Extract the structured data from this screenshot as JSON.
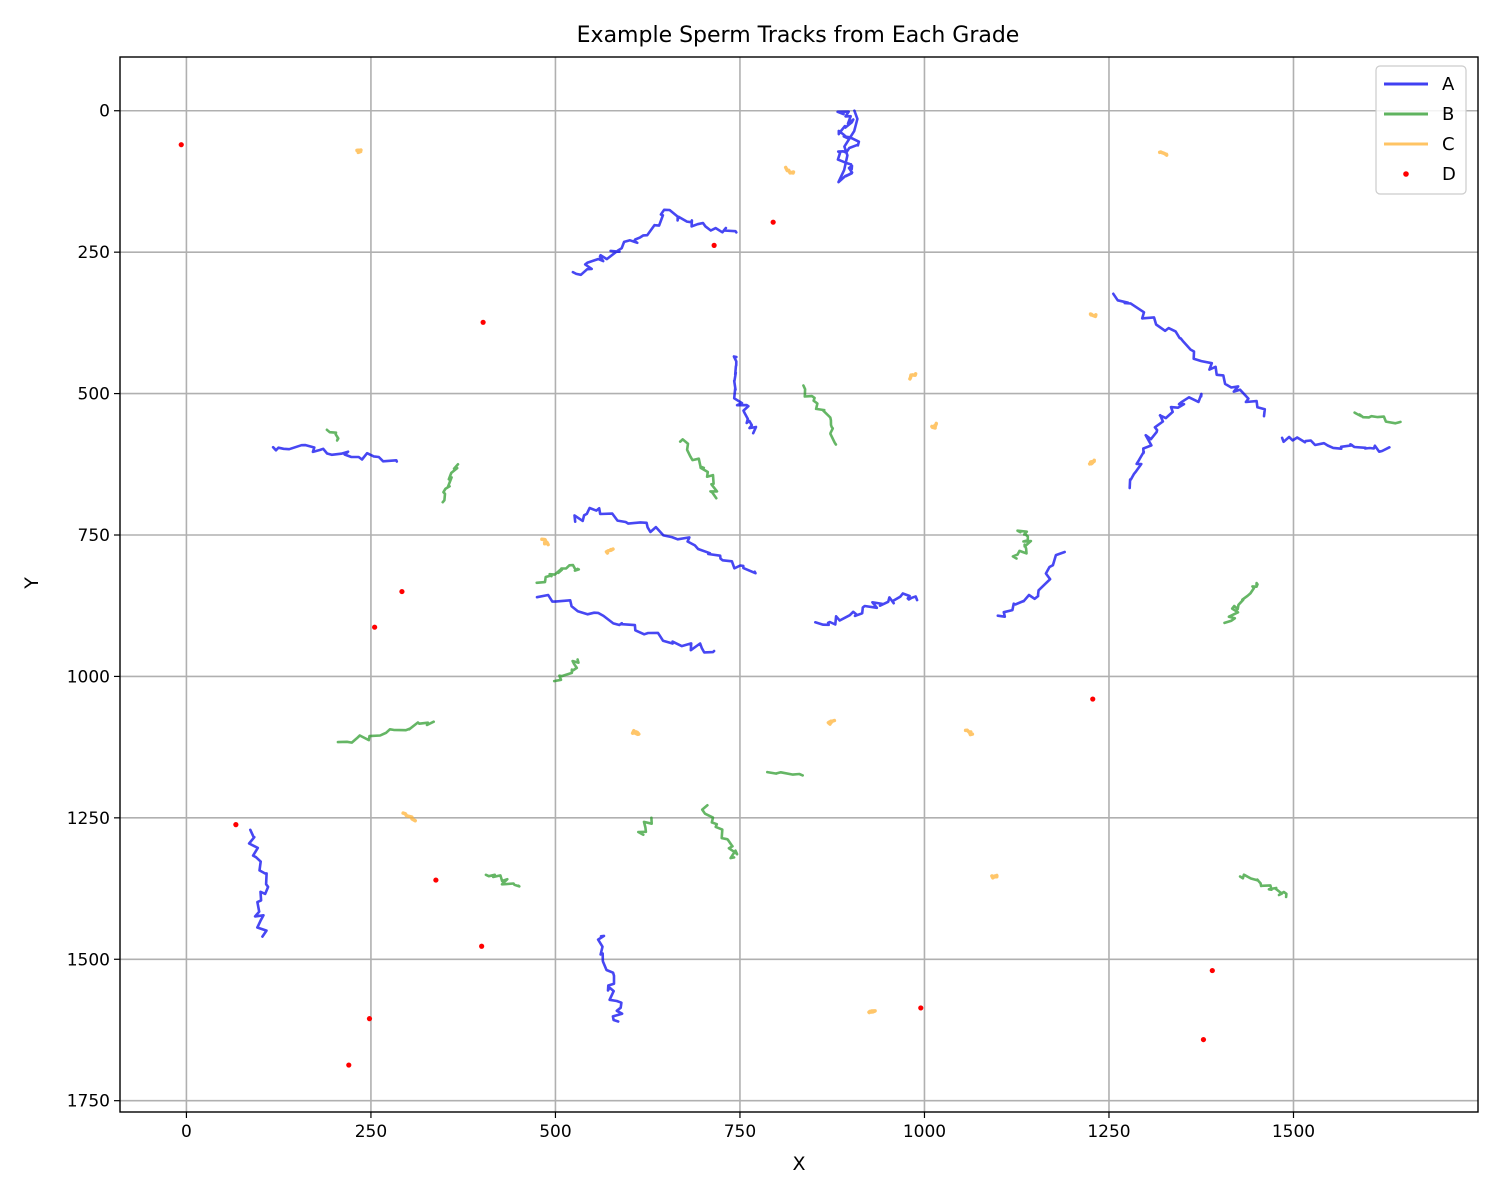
{
  "chart_data": {
    "type": "line",
    "title": "Example Sperm Tracks from Each Grade",
    "xlabel": "X",
    "ylabel": "Y",
    "xlim": [
      -90,
      1750
    ],
    "ylim": [
      1770,
      -95
    ],
    "y_inverted": true,
    "x_ticks": [
      0,
      250,
      500,
      750,
      1000,
      1250,
      1500
    ],
    "y_ticks": [
      0,
      250,
      500,
      750,
      1000,
      1250,
      1500,
      1750
    ],
    "grid": true,
    "legend_position": "top-right",
    "series": [
      {
        "name": "A",
        "color": "#0000ee",
        "tracks": [
          [
            [
              885,
              0
            ],
            [
              905,
              20
            ],
            [
              885,
              40
            ],
            [
              908,
              60
            ],
            [
              883,
              80
            ],
            [
              905,
              100
            ],
            [
              890,
              120
            ],
            [
              905,
              0
            ]
          ],
          [
            [
              530,
              290
            ],
            [
              550,
              270
            ],
            [
              575,
              255
            ],
            [
              600,
              235
            ],
            [
              625,
              215
            ],
            [
              650,
              180
            ],
            [
              680,
              195
            ],
            [
              710,
              205
            ],
            [
              745,
              215
            ]
          ],
          [
            [
              1260,
              325
            ],
            [
              1295,
              355
            ],
            [
              1330,
              390
            ],
            [
              1365,
              425
            ],
            [
              1400,
              465
            ],
            [
              1430,
              500
            ],
            [
              1460,
              540
            ]
          ],
          [
            [
              1280,
              665
            ],
            [
              1290,
              620
            ],
            [
              1305,
              580
            ],
            [
              1320,
              545
            ],
            [
              1345,
              520
            ],
            [
              1375,
              505
            ]
          ],
          [
            [
              745,
              430
            ],
            [
              738,
              470
            ],
            [
              750,
              510
            ],
            [
              762,
              545
            ],
            [
              768,
              570
            ]
          ],
          [
            [
              115,
              600
            ],
            [
              160,
              595
            ],
            [
              200,
              602
            ],
            [
              240,
              610
            ],
            [
              285,
              620
            ]
          ],
          [
            [
              1480,
              580
            ],
            [
              1520,
              585
            ],
            [
              1560,
              592
            ],
            [
              1600,
              598
            ],
            [
              1630,
              595
            ]
          ],
          [
            [
              520,
              725
            ],
            [
              550,
              705
            ],
            [
              600,
              725
            ],
            [
              650,
              745
            ],
            [
              700,
              775
            ],
            [
              740,
              800
            ],
            [
              770,
              815
            ]
          ],
          [
            [
              480,
              855
            ],
            [
              530,
              880
            ],
            [
              580,
              905
            ],
            [
              630,
              925
            ],
            [
              680,
              945
            ],
            [
              715,
              955
            ]
          ],
          [
            [
              855,
              910
            ],
            [
              885,
              900
            ],
            [
              915,
              885
            ],
            [
              945,
              870
            ],
            [
              970,
              860
            ],
            [
              990,
              865
            ]
          ],
          [
            [
              1100,
              895
            ],
            [
              1130,
              870
            ],
            [
              1160,
              845
            ],
            [
              1190,
              780
            ]
          ],
          [
            [
              85,
              1270
            ],
            [
              95,
              1320
            ],
            [
              108,
              1370
            ],
            [
              100,
              1420
            ],
            [
              103,
              1460
            ]
          ],
          [
            [
              558,
              1455
            ],
            [
              570,
              1500
            ],
            [
              575,
              1545
            ],
            [
              583,
              1580
            ],
            [
              585,
              1610
            ]
          ]
        ]
      },
      {
        "name": "B",
        "color": "#2a9a2a",
        "tracks": [
          [
            [
              195,
              565
            ],
            [
              205,
              580
            ]
          ],
          [
            [
              350,
              690
            ],
            [
              358,
              660
            ],
            [
              368,
              625
            ]
          ],
          [
            [
              670,
              580
            ],
            [
              690,
              620
            ],
            [
              710,
              650
            ],
            [
              718,
              685
            ]
          ],
          [
            [
              835,
              490
            ],
            [
              855,
              520
            ],
            [
              875,
              550
            ],
            [
              880,
              590
            ]
          ],
          [
            [
              1580,
              535
            ],
            [
              1610,
              540
            ],
            [
              1645,
              550
            ]
          ],
          [
            [
              1120,
              790
            ],
            [
              1135,
              780
            ],
            [
              1140,
              755
            ],
            [
              1130,
              745
            ]
          ],
          [
            [
              480,
              830
            ],
            [
              500,
              815
            ],
            [
              520,
              805
            ],
            [
              530,
              810
            ]
          ],
          [
            [
              1410,
              910
            ],
            [
              1425,
              880
            ],
            [
              1440,
              850
            ],
            [
              1450,
              835
            ]
          ],
          [
            [
              500,
              1010
            ],
            [
              520,
              990
            ],
            [
              530,
              970
            ]
          ],
          [
            [
              205,
              1115
            ],
            [
              250,
              1105
            ],
            [
              300,
              1090
            ],
            [
              335,
              1080
            ]
          ],
          [
            [
              785,
              1165
            ],
            [
              835,
              1175
            ]
          ],
          [
            [
              615,
              1285
            ],
            [
              630,
              1250
            ]
          ],
          [
            [
              700,
              1230
            ],
            [
              720,
              1270
            ],
            [
              740,
              1300
            ],
            [
              742,
              1320
            ]
          ],
          [
            [
              410,
              1350
            ],
            [
              430,
              1360
            ],
            [
              450,
              1370
            ]
          ],
          [
            [
              1430,
              1350
            ],
            [
              1455,
              1365
            ],
            [
              1475,
              1375
            ],
            [
              1490,
              1390
            ]
          ]
        ]
      },
      {
        "name": "C",
        "color": "#ffb030",
        "tracks": [
          [
            [
              232,
              68
            ],
            [
              236,
              72
            ]
          ],
          [
            [
              812,
              102
            ],
            [
              822,
              110
            ]
          ],
          [
            [
              1318,
              74
            ],
            [
              1328,
              77
            ]
          ],
          [
            [
              1224,
              360
            ],
            [
              1232,
              362
            ]
          ],
          [
            [
              978,
              472
            ],
            [
              988,
              465
            ]
          ],
          [
            [
              1012,
              560
            ],
            [
              1016,
              553
            ]
          ],
          [
            [
              1225,
              625
            ],
            [
              1230,
              618
            ]
          ],
          [
            [
              482,
              757
            ],
            [
              490,
              767
            ]
          ],
          [
            [
              570,
              780
            ],
            [
              578,
              775
            ]
          ],
          [
            [
              605,
              1098
            ],
            [
              613,
              1102
            ]
          ],
          [
            [
              870,
              1085
            ],
            [
              878,
              1078
            ]
          ],
          [
            [
              1058,
              1095
            ],
            [
              1065,
              1102
            ]
          ],
          [
            [
              295,
              1240
            ],
            [
              310,
              1255
            ]
          ],
          [
            [
              1092,
              1355
            ],
            [
              1098,
              1352
            ]
          ],
          [
            [
              925,
              1595
            ],
            [
              932,
              1592
            ]
          ]
        ]
      },
      {
        "name": "D",
        "color": "#ff0000",
        "points": [
          [
            -7,
            60
          ],
          [
            795,
            197
          ],
          [
            715,
            238
          ],
          [
            402,
            374
          ],
          [
            292,
            850
          ],
          [
            255,
            913
          ],
          [
            1228,
            1040
          ],
          [
            67,
            1262
          ],
          [
            338,
            1360
          ],
          [
            400,
            1477
          ],
          [
            1390,
            1520
          ],
          [
            248,
            1605
          ],
          [
            995,
            1586
          ],
          [
            1378,
            1642
          ],
          [
            220,
            1687
          ]
        ]
      }
    ]
  }
}
